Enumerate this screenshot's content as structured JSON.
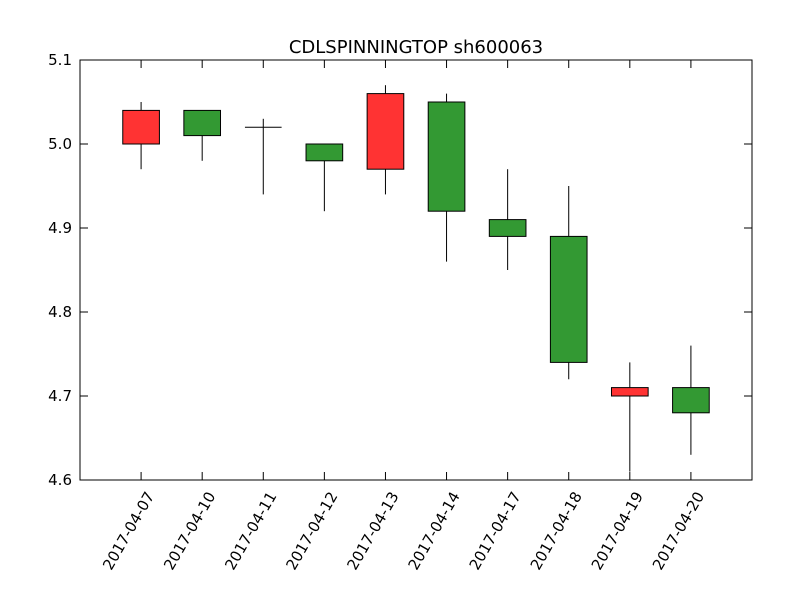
{
  "chart_data": {
    "type": "candlestick",
    "title": "CDLSPINNINGTOP sh600063",
    "xlabel": "",
    "ylabel": "",
    "ylim": [
      4.6,
      5.1
    ],
    "y_ticks": [
      4.6,
      4.7,
      4.8,
      4.9,
      5.0,
      5.1
    ],
    "y_tick_labels": [
      "4.6",
      "4.7",
      "4.8",
      "4.9",
      "5.0",
      "5.1"
    ],
    "grid": false,
    "colors": {
      "up": "#ff3333",
      "down": "#339933",
      "line": "#000000"
    },
    "candles": [
      {
        "date": "2017-04-07",
        "open": 5.0,
        "high": 5.05,
        "low": 4.97,
        "close": 5.04
      },
      {
        "date": "2017-04-10",
        "open": 5.04,
        "high": 5.04,
        "low": 4.98,
        "close": 5.01
      },
      {
        "date": "2017-04-11",
        "open": 5.02,
        "high": 5.03,
        "low": 4.94,
        "close": 5.02
      },
      {
        "date": "2017-04-12",
        "open": 5.0,
        "high": 5.0,
        "low": 4.92,
        "close": 4.98
      },
      {
        "date": "2017-04-13",
        "open": 4.97,
        "high": 5.07,
        "low": 4.94,
        "close": 5.06
      },
      {
        "date": "2017-04-14",
        "open": 5.05,
        "high": 5.06,
        "low": 4.86,
        "close": 4.92
      },
      {
        "date": "2017-04-17",
        "open": 4.91,
        "high": 4.97,
        "low": 4.85,
        "close": 4.89
      },
      {
        "date": "2017-04-18",
        "open": 4.89,
        "high": 4.95,
        "low": 4.72,
        "close": 4.74
      },
      {
        "date": "2017-04-19",
        "open": 4.7,
        "high": 4.74,
        "low": 4.61,
        "close": 4.71
      },
      {
        "date": "2017-04-20",
        "open": 4.71,
        "high": 4.76,
        "low": 4.63,
        "close": 4.68
      }
    ]
  }
}
